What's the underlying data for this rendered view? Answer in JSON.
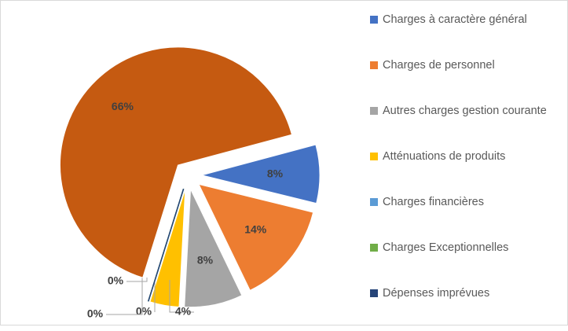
{
  "chart_data": {
    "type": "pie",
    "categories": [
      "Charges à caractère général",
      "Charges de personnel",
      "Autres charges gestion courante",
      "Atténuations de produits",
      "Charges financières",
      "Charges Exceptionnelles",
      "Dépenses imprévues",
      null
    ],
    "values": [
      8,
      14,
      8,
      4,
      0,
      0,
      0,
      66
    ],
    "value_labels": [
      "8%",
      "14%",
      "8%",
      "4%",
      "0%",
      "0%",
      "0%",
      "66%"
    ],
    "colors": [
      "#4472c4",
      "#ed7d31",
      "#a5a5a5",
      "#ffc000",
      "#5b9bd5",
      "#70ad47",
      "#264478",
      "#c55a11"
    ],
    "legend": "right"
  }
}
